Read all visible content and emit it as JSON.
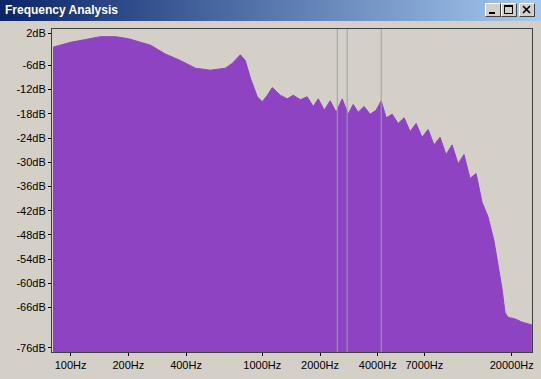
{
  "chart_data": {
    "type": "area",
    "title": "Frequency Analysis",
    "x": [
      81,
      100,
      120,
      143,
      172,
      200,
      261,
      312,
      374,
      448,
      536,
      642,
      698,
      768,
      815,
      866,
      942,
      1000,
      1062,
      1127,
      1241,
      1349,
      1450,
      1578,
      1714,
      1844,
      1958,
      2103,
      2260,
      2428,
      2610,
      2804,
      2978,
      3162,
      3397,
      3652,
      3925,
      4169,
      4427,
      4755,
      5109,
      5491,
      5902,
      6341,
      6813,
      7322,
      7866,
      8453,
      9083,
      9772,
      10497,
      11272,
      12115,
      13032,
      13996,
      15031,
      16145,
      16943,
      17783,
      18444,
      19099,
      20797,
      22594,
      25468
    ],
    "values": [
      -1.5,
      -0.3,
      0.4,
      1.1,
      1.1,
      0.6,
      -1.0,
      -3.2,
      -4.8,
      -6.7,
      -7.2,
      -6.7,
      -5.5,
      -3.4,
      -4.8,
      -9.1,
      -13.8,
      -15.0,
      -13.4,
      -11.5,
      -13.4,
      -14.3,
      -13.4,
      -14.5,
      -13.8,
      -16.2,
      -14.3,
      -17.1,
      -14.8,
      -17.6,
      -14.3,
      -18.1,
      -15.7,
      -17.6,
      -16.2,
      -18.1,
      -17.1,
      -14.8,
      -19.0,
      -18.1,
      -20.4,
      -19.0,
      -22.4,
      -20.4,
      -23.8,
      -21.9,
      -25.7,
      -23.8,
      -28.1,
      -25.7,
      -30.4,
      -28.1,
      -34.0,
      -32.8,
      -39.9,
      -43.5,
      -49.4,
      -55.3,
      -61.3,
      -67.2,
      -68.4,
      -68.8,
      -69.6,
      -70.3
    ],
    "color": "#8e44c2",
    "log": "x",
    "grid": false,
    "xlim": [
      80,
      25500
    ],
    "xticks": [
      {
        "value": 100,
        "label": "100Hz"
      },
      {
        "value": 200,
        "label": "200Hz"
      },
      {
        "value": 400,
        "label": "400Hz"
      },
      {
        "value": 1000,
        "label": "1000Hz"
      },
      {
        "value": 2000,
        "label": "2000Hz"
      },
      {
        "value": 4000,
        "label": "4000Hz"
      },
      {
        "value": 7000,
        "label": "7000Hz"
      },
      {
        "value": 20000,
        "label": "20000Hz"
      }
    ],
    "ylim": [
      -77,
      3
    ],
    "yticks": [
      {
        "value": 2,
        "label": "2dB"
      },
      {
        "value": -6,
        "label": "-6dB"
      },
      {
        "value": -12,
        "label": "-12dB"
      },
      {
        "value": -18,
        "label": "-18dB"
      },
      {
        "value": -24,
        "label": "-24dB"
      },
      {
        "value": -30,
        "label": "-30dB"
      },
      {
        "value": -36,
        "label": "-36dB"
      },
      {
        "value": -42,
        "label": "-42dB"
      },
      {
        "value": -48,
        "label": "-48dB"
      },
      {
        "value": -54,
        "label": "-54dB"
      },
      {
        "value": -60,
        "label": "-60dB"
      },
      {
        "value": -66,
        "label": "-66dB"
      },
      {
        "value": -76,
        "label": "-76dB"
      }
    ],
    "vlines": [
      2460,
      2770,
      4170
    ]
  }
}
